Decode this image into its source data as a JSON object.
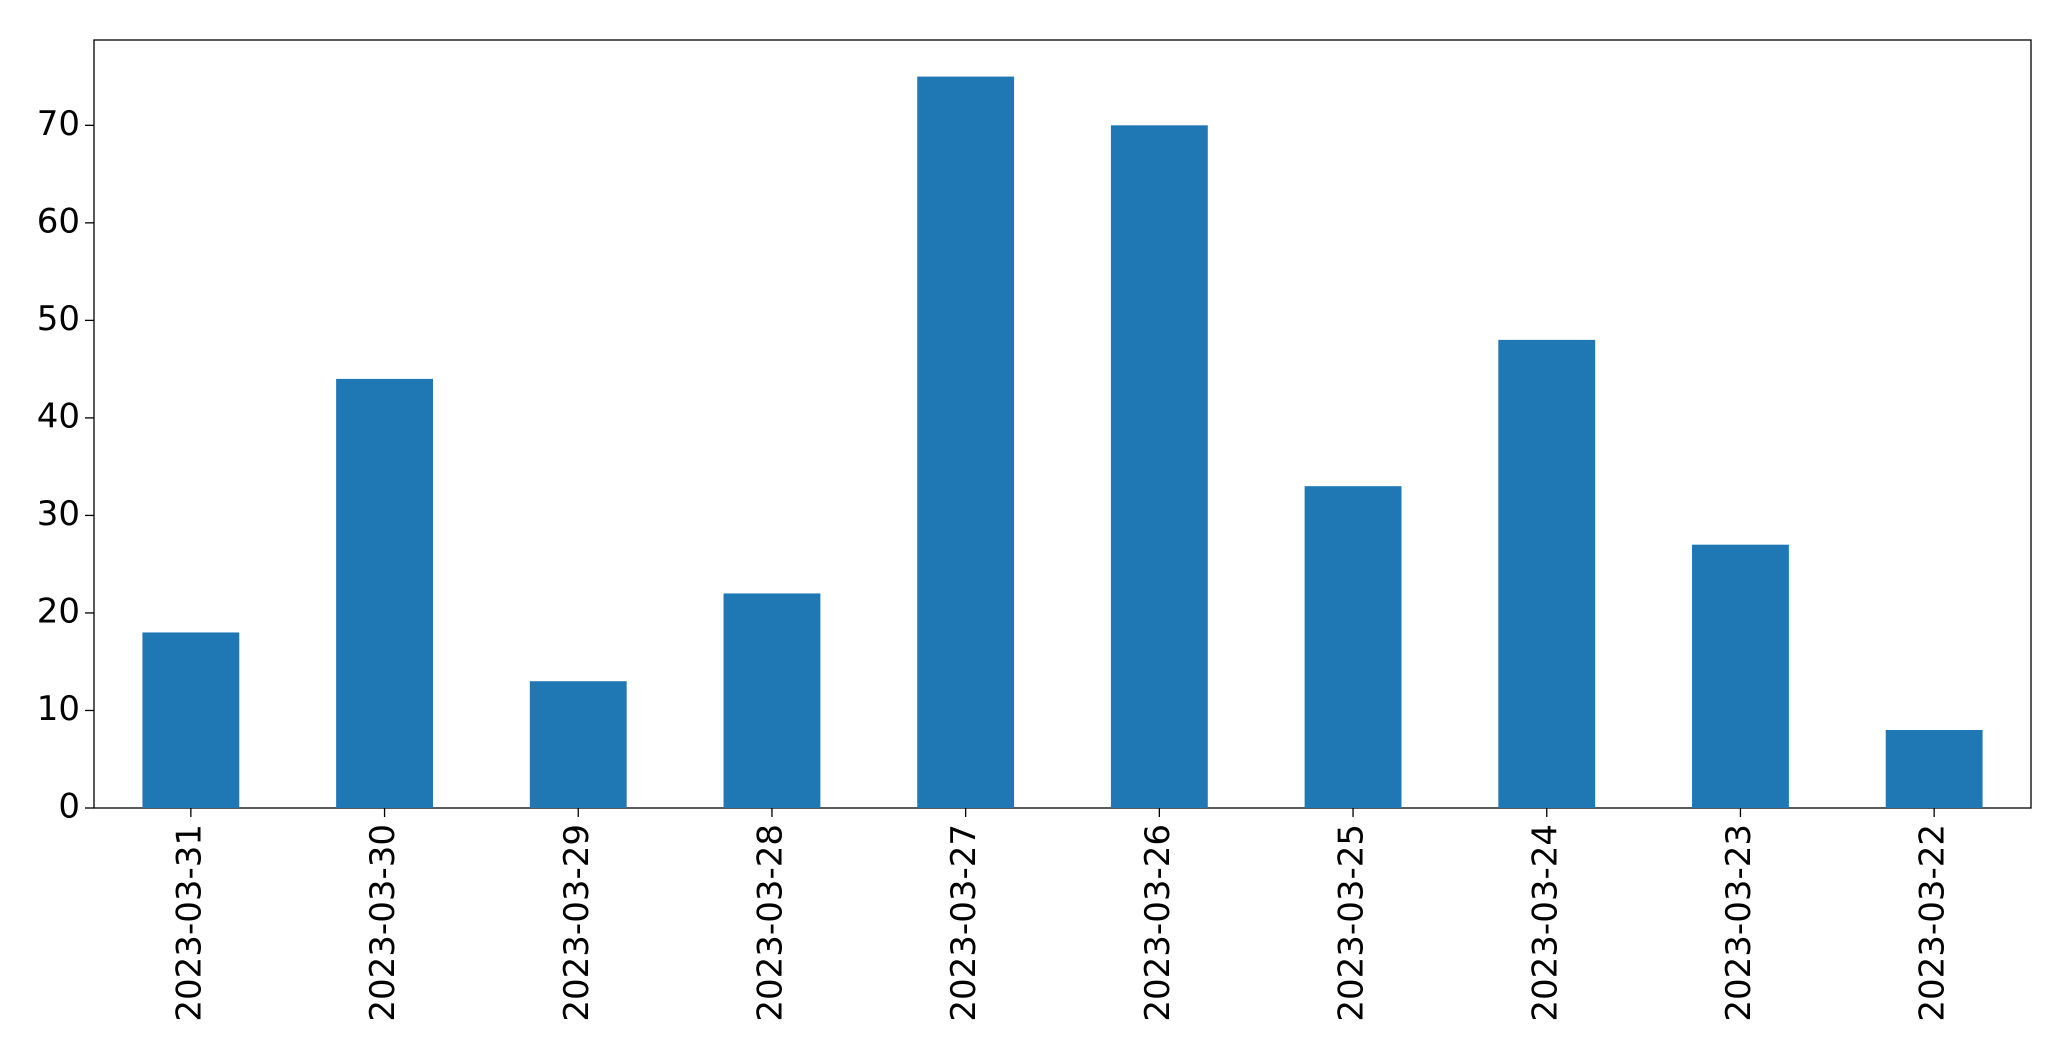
{
  "chart_data": {
    "type": "bar",
    "categories": [
      "2023-03-31",
      "2023-03-30",
      "2023-03-29",
      "2023-03-28",
      "2023-03-27",
      "2023-03-26",
      "2023-03-25",
      "2023-03-24",
      "2023-03-23",
      "2023-03-22"
    ],
    "values": [
      18,
      44,
      13,
      22,
      75,
      70,
      33,
      48,
      27,
      8
    ],
    "color": "#1f77b4",
    "ylim": [
      0,
      78.75
    ],
    "yticks": [
      0,
      10,
      20,
      30,
      40,
      50,
      60,
      70
    ],
    "grid": false
  }
}
